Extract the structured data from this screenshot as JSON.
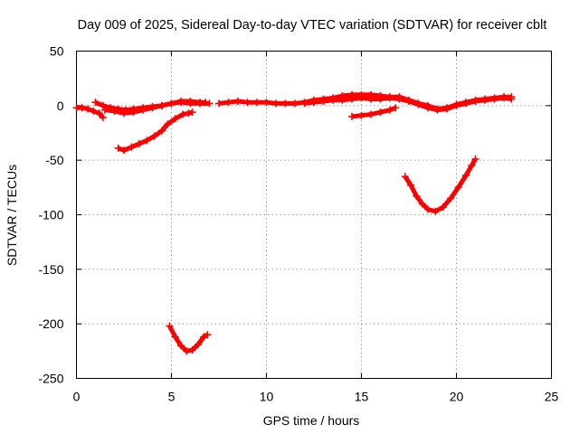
{
  "chart_data": {
    "type": "scatter",
    "title": "Day 009 of 2025, Sidereal Day-to-day VTEC variation (SDTVAR) for receiver cblt",
    "xlabel": "GPS time / hours",
    "ylabel": "SDTVAR / TECUs",
    "xlim": [
      0,
      25
    ],
    "ylim": [
      -250,
      50
    ],
    "xticks": [
      0,
      5,
      10,
      15,
      20,
      25
    ],
    "yticks": [
      -250,
      -200,
      -150,
      -100,
      -50,
      0,
      50
    ],
    "grid": true,
    "legend": "none",
    "series_color": "#ff0000",
    "series": [
      {
        "segments": [
          [
            [
              0.0,
              -2
            ],
            [
              0.3,
              -2
            ],
            [
              0.6,
              -3
            ],
            [
              0.9,
              -5
            ],
            [
              1.2,
              -7
            ],
            [
              1.4,
              -11
            ]
          ],
          [
            [
              1.0,
              3
            ],
            [
              1.4,
              0
            ],
            [
              1.8,
              -2
            ],
            [
              2.2,
              -3
            ],
            [
              2.6,
              -4
            ],
            [
              3.0,
              -3
            ],
            [
              3.5,
              -2
            ],
            [
              4.0,
              -1
            ],
            [
              4.5,
              0
            ],
            [
              5.0,
              2
            ],
            [
              5.5,
              4
            ],
            [
              6.0,
              4
            ],
            [
              6.5,
              3
            ],
            [
              6.8,
              3
            ]
          ],
          [
            [
              1.5,
              -4
            ],
            [
              2.0,
              -5
            ],
            [
              2.5,
              -7
            ],
            [
              3.0,
              -6
            ],
            [
              3.5,
              -4
            ],
            [
              4.0,
              -2
            ],
            [
              4.5,
              0
            ],
            [
              5.0,
              2
            ],
            [
              5.5,
              3
            ],
            [
              6.0,
              2
            ],
            [
              6.5,
              2
            ],
            [
              7.0,
              2
            ]
          ],
          [
            [
              2.2,
              -39
            ],
            [
              2.5,
              -41
            ],
            [
              2.9,
              -38
            ],
            [
              3.3,
              -35
            ],
            [
              3.7,
              -32
            ],
            [
              4.1,
              -28
            ],
            [
              4.5,
              -23
            ],
            [
              4.8,
              -17
            ],
            [
              5.2,
              -12
            ],
            [
              5.6,
              -8
            ],
            [
              5.9,
              -7
            ],
            [
              6.1,
              -6
            ]
          ],
          [
            [
              7.5,
              2
            ],
            [
              8.0,
              3
            ],
            [
              8.5,
              4
            ],
            [
              9.0,
              3
            ],
            [
              9.5,
              3
            ],
            [
              10.0,
              3
            ],
            [
              10.5,
              2
            ],
            [
              11.0,
              2
            ],
            [
              11.5,
              2
            ],
            [
              12.0,
              3
            ],
            [
              12.5,
              5
            ],
            [
              13.0,
              6
            ],
            [
              13.5,
              7
            ],
            [
              14.0,
              9
            ],
            [
              14.5,
              10
            ],
            [
              15.0,
              10
            ],
            [
              15.5,
              10
            ],
            [
              16.0,
              9
            ],
            [
              16.5,
              8
            ],
            [
              17.0,
              8
            ],
            [
              17.5,
              5
            ],
            [
              18.0,
              2
            ],
            [
              18.5,
              0
            ],
            [
              19.0,
              -3
            ],
            [
              19.5,
              -2
            ],
            [
              20.0,
              1
            ],
            [
              20.5,
              3
            ],
            [
              21.0,
              5
            ],
            [
              21.5,
              6
            ],
            [
              22.0,
              7
            ],
            [
              22.5,
              8
            ],
            [
              22.9,
              8
            ]
          ],
          [
            [
              12.0,
              2
            ],
            [
              12.5,
              3
            ],
            [
              13.0,
              4
            ],
            [
              13.5,
              5
            ],
            [
              14.0,
              5
            ],
            [
              14.5,
              6
            ],
            [
              15.0,
              7
            ],
            [
              15.5,
              6
            ],
            [
              16.0,
              6
            ],
            [
              16.5,
              7
            ],
            [
              17.0,
              6
            ],
            [
              17.5,
              4
            ],
            [
              18.0,
              1
            ],
            [
              18.5,
              -2
            ],
            [
              19.0,
              -4
            ],
            [
              19.5,
              -3
            ],
            [
              20.0,
              0
            ],
            [
              20.5,
              2
            ],
            [
              21.0,
              4
            ],
            [
              21.5,
              5
            ],
            [
              22.0,
              6
            ],
            [
              22.5,
              7
            ],
            [
              22.9,
              6
            ]
          ],
          [
            [
              14.5,
              -10
            ],
            [
              15.0,
              -9
            ],
            [
              15.5,
              -8
            ],
            [
              16.0,
              -6
            ],
            [
              16.5,
              -4
            ],
            [
              16.8,
              -2
            ]
          ],
          [
            [
              17.3,
              -65
            ],
            [
              17.6,
              -73
            ],
            [
              17.9,
              -83
            ],
            [
              18.2,
              -90
            ],
            [
              18.5,
              -95
            ],
            [
              18.9,
              -97
            ],
            [
              19.3,
              -93
            ],
            [
              19.7,
              -85
            ],
            [
              20.1,
              -75
            ],
            [
              20.5,
              -64
            ],
            [
              20.8,
              -55
            ],
            [
              21.0,
              -49
            ]
          ],
          [
            [
              4.9,
              -202
            ],
            [
              5.2,
              -212
            ],
            [
              5.5,
              -220
            ],
            [
              5.8,
              -225
            ],
            [
              6.1,
              -224
            ],
            [
              6.4,
              -219
            ],
            [
              6.7,
              -212
            ],
            [
              6.9,
              -210
            ]
          ]
        ]
      }
    ]
  }
}
